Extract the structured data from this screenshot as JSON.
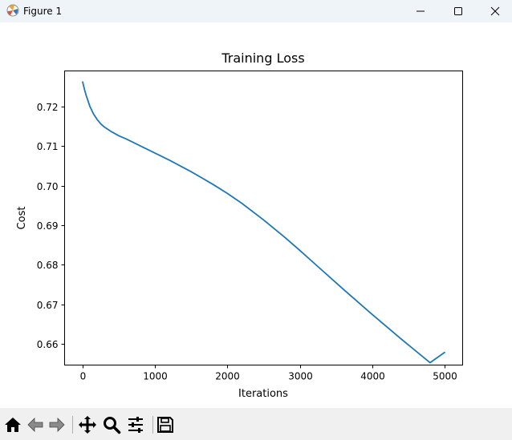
{
  "window": {
    "title": "Figure 1"
  },
  "toolbar": {
    "items": [
      {
        "icon": "home-icon"
      },
      {
        "icon": "back-arrow-icon"
      },
      {
        "icon": "forward-arrow-icon"
      },
      {
        "icon": "pan-icon"
      },
      {
        "icon": "zoom-icon"
      },
      {
        "icon": "configure-subplots-icon"
      },
      {
        "icon": "save-icon"
      }
    ]
  },
  "colors": {
    "line": "#1f77b4",
    "titlebar": "#eff4f9",
    "toolbar": "#f0f0f0"
  },
  "chart_data": {
    "type": "line",
    "title": "Training Loss",
    "xlabel": "Iterations",
    "ylabel": "Cost",
    "xlim": [
      -250,
      5250
    ],
    "ylim": [
      0.6546,
      0.729
    ],
    "xticks": [
      0,
      1000,
      2000,
      3000,
      4000,
      5000
    ],
    "xtick_labels": [
      "0",
      "1000",
      "2000",
      "3000",
      "4000",
      "5000"
    ],
    "yticks": [
      0.66,
      0.67,
      0.68,
      0.69,
      0.7,
      0.71,
      0.72
    ],
    "ytick_labels": [
      "0.66",
      "0.67",
      "0.68",
      "0.69",
      "0.70",
      "0.71",
      "0.72"
    ],
    "grid": false,
    "series": [
      {
        "x": [
          0,
          25,
          50,
          100,
          150,
          200,
          250,
          300,
          400,
          500,
          600,
          800,
          1000,
          1200,
          1500,
          1800,
          2000,
          2200,
          2500,
          2800,
          3000,
          3300,
          3600,
          4000,
          4400,
          4800,
          5000
        ],
        "values": [
          0.7262,
          0.7243,
          0.7227,
          0.72,
          0.7181,
          0.7167,
          0.7156,
          0.7148,
          0.7136,
          0.7126,
          0.7118,
          0.71,
          0.7082,
          0.7064,
          0.7035,
          0.7003,
          0.698,
          0.6955,
          0.6913,
          0.6868,
          0.6836,
          0.6787,
          0.6738,
          0.6674,
          0.6612,
          0.6552,
          0.6578
        ]
      }
    ]
  }
}
